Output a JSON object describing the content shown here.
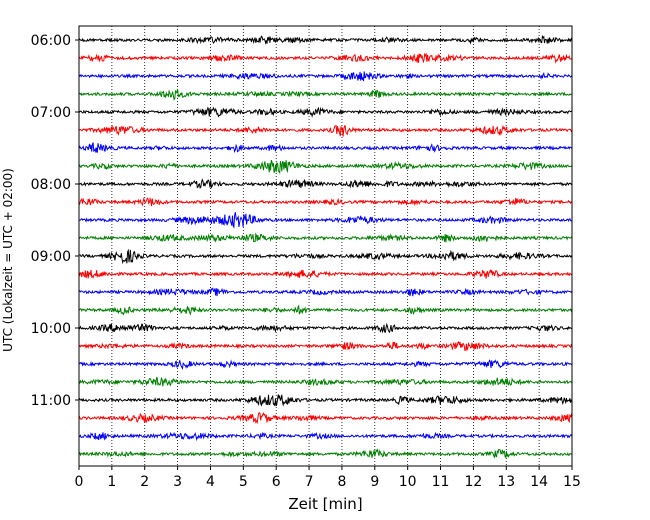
{
  "chart_data": {
    "type": "line",
    "title": "",
    "xlabel": "Zeit  [min]",
    "ylabel": "UTC (Lokalzeit = UTC + 02:00)",
    "xlim": [
      0,
      15
    ],
    "x_ticks": [
      0,
      1,
      2,
      3,
      4,
      5,
      6,
      7,
      8,
      9,
      10,
      11,
      12,
      13,
      14,
      15
    ],
    "x_tick_labels": [
      "0",
      "1",
      "2",
      "3",
      "4",
      "5",
      "6",
      "7",
      "8",
      "9",
      "10",
      "11",
      "12",
      "13",
      "14",
      "15"
    ],
    "y_tick_labels": [
      "06:00",
      "07:00",
      "08:00",
      "09:00",
      "10:00",
      "11:00"
    ],
    "y_tick_rows": [
      0,
      4,
      8,
      12,
      16,
      20
    ],
    "row_count": 24,
    "row_start": "06:00",
    "row_interval_min": 15,
    "row_colors": [
      "#000000",
      "#ff0000",
      "#0000ff",
      "#008000"
    ],
    "grid": {
      "x": true,
      "style": "dotted"
    },
    "legend": "none"
  }
}
